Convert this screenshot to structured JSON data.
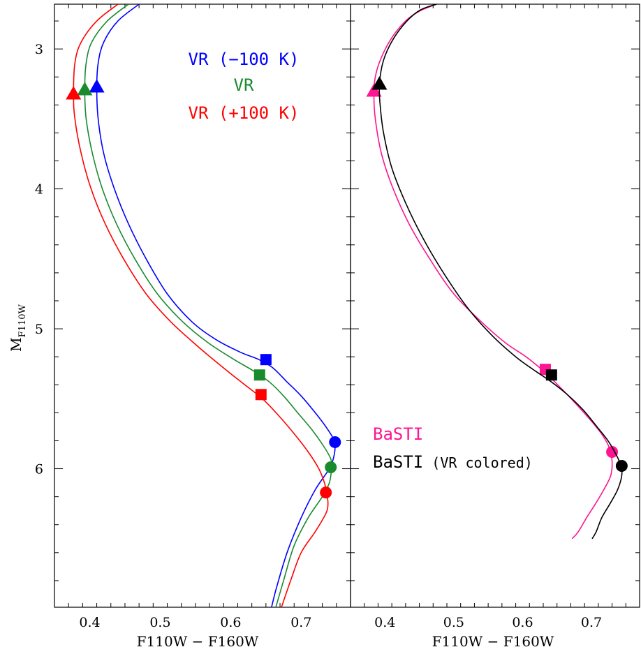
{
  "colors": {
    "blue": "#0000ff",
    "green": "#1a8a2e",
    "red": "#ff0000",
    "magenta": "#ff1493",
    "black": "#000000"
  },
  "chart_data": [
    {
      "type": "line",
      "panel": "left",
      "xlabel": "F110W − F160W",
      "ylabel": "M",
      "ylabel_sub": "F110W",
      "xlim": [
        0.35,
        0.77
      ],
      "ylim": [
        6.99,
        2.68
      ],
      "y_inverted": true,
      "xticks": [
        0.4,
        0.5,
        0.6,
        0.7
      ],
      "xtick_labels": [
        "0.4",
        "0.5",
        "0.6",
        "0.7"
      ],
      "yticks": [
        3,
        4,
        5,
        6
      ],
      "ytick_labels": [
        "3",
        "4",
        "5",
        "6"
      ],
      "legend": [
        {
          "text": "VR (−100 K)",
          "color": "#0000ff"
        },
        {
          "text": "VR",
          "color": "#1a8a2e"
        },
        {
          "text": "VR (+100 K)",
          "color": "#ff0000"
        }
      ],
      "legend_position": "top-right",
      "series": [
        {
          "color": "#0000ff",
          "x": [
            0.47,
            0.44,
            0.42,
            0.412,
            0.41,
            0.412,
            0.42,
            0.435,
            0.455,
            0.48,
            0.51,
            0.545,
            0.58,
            0.615,
            0.64,
            0.66,
            0.68,
            0.7,
            0.72,
            0.735,
            0.745,
            0.748,
            0.746,
            0.74,
            0.72,
            0.7,
            0.68,
            0.665,
            0.658
          ],
          "y": [
            2.68,
            2.8,
            2.95,
            3.1,
            3.28,
            3.5,
            3.75,
            4.0,
            4.25,
            4.5,
            4.75,
            4.95,
            5.08,
            5.17,
            5.22,
            5.28,
            5.38,
            5.48,
            5.6,
            5.7,
            5.78,
            5.84,
            5.92,
            6.0,
            6.15,
            6.35,
            6.6,
            6.85,
            6.99
          ],
          "markers": [
            {
              "shape": "triangle",
              "x": 0.41,
              "y": 3.27
            },
            {
              "shape": "square",
              "x": 0.65,
              "y": 5.22
            },
            {
              "shape": "circle",
              "x": 0.748,
              "y": 5.81
            }
          ]
        },
        {
          "color": "#1a8a2e",
          "x": [
            0.455,
            0.425,
            0.403,
            0.395,
            0.393,
            0.395,
            0.404,
            0.418,
            0.438,
            0.464,
            0.496,
            0.532,
            0.568,
            0.605,
            0.632,
            0.655,
            0.675,
            0.695,
            0.715,
            0.732,
            0.742,
            0.743,
            0.74,
            0.73,
            0.71,
            0.69,
            0.675,
            0.664
          ],
          "y": [
            2.68,
            2.8,
            2.95,
            3.1,
            3.29,
            3.5,
            3.75,
            4.0,
            4.25,
            4.5,
            4.75,
            4.95,
            5.1,
            5.22,
            5.3,
            5.38,
            5.48,
            5.6,
            5.72,
            5.84,
            5.93,
            6.0,
            6.1,
            6.2,
            6.35,
            6.55,
            6.8,
            6.99
          ],
          "markers": [
            {
              "shape": "triangle",
              "x": 0.393,
              "y": 3.29
            },
            {
              "shape": "square",
              "x": 0.641,
              "y": 5.33
            },
            {
              "shape": "circle",
              "x": 0.742,
              "y": 5.99
            }
          ]
        },
        {
          "color": "#ff0000",
          "x": [
            0.44,
            0.41,
            0.388,
            0.379,
            0.377,
            0.379,
            0.388,
            0.402,
            0.422,
            0.448,
            0.48,
            0.515,
            0.552,
            0.59,
            0.62,
            0.645,
            0.668,
            0.69,
            0.71,
            0.725,
            0.733,
            0.736,
            0.738,
            0.735,
            0.72,
            0.7,
            0.685,
            0.672
          ],
          "y": [
            2.68,
            2.8,
            2.95,
            3.1,
            3.32,
            3.5,
            3.75,
            4.0,
            4.25,
            4.5,
            4.75,
            4.95,
            5.12,
            5.28,
            5.4,
            5.5,
            5.62,
            5.75,
            5.88,
            6.0,
            6.1,
            6.17,
            6.25,
            6.32,
            6.45,
            6.6,
            6.8,
            6.99
          ],
          "markers": [
            {
              "shape": "triangle",
              "x": 0.377,
              "y": 3.32
            },
            {
              "shape": "square",
              "x": 0.643,
              "y": 5.47
            },
            {
              "shape": "circle",
              "x": 0.735,
              "y": 6.17
            }
          ]
        }
      ]
    },
    {
      "type": "line",
      "panel": "right",
      "xlabel": "F110W − F160W",
      "xlim": [
        0.35,
        0.77
      ],
      "ylim": [
        6.99,
        2.68
      ],
      "y_inverted": true,
      "xticks": [
        0.4,
        0.5,
        0.6,
        0.7
      ],
      "xtick_labels": [
        "0.4",
        "0.5",
        "0.6",
        "0.7"
      ],
      "legend": [
        {
          "text": "BaSTI",
          "color": "#ff1493"
        },
        {
          "text": "BaSTI",
          "suffix": " (VR colored)",
          "color": "#000000"
        }
      ],
      "legend_position": "bottom-right",
      "series": [
        {
          "color": "#ff1493",
          "x": [
            0.475,
            0.45,
            0.43,
            0.41,
            0.394,
            0.386,
            0.384,
            0.386,
            0.395,
            0.412,
            0.435,
            0.465,
            0.5,
            0.54,
            0.575,
            0.605,
            0.63,
            0.655,
            0.68,
            0.7,
            0.716,
            0.726,
            0.73,
            0.728,
            0.718,
            0.706,
            0.693,
            0.681,
            0.672
          ],
          "y": [
            2.68,
            2.73,
            2.8,
            2.92,
            3.07,
            3.2,
            3.33,
            3.5,
            3.75,
            4.0,
            4.25,
            4.5,
            4.75,
            4.95,
            5.1,
            5.2,
            5.3,
            5.42,
            5.55,
            5.66,
            5.76,
            5.85,
            5.95,
            6.05,
            6.15,
            6.25,
            6.35,
            6.45,
            6.5
          ],
          "markers": [
            {
              "shape": "triangle",
              "x": 0.384,
              "y": 3.3
            },
            {
              "shape": "square",
              "x": 0.633,
              "y": 5.29
            },
            {
              "shape": "circle",
              "x": 0.73,
              "y": 5.88
            }
          ]
        },
        {
          "color": "#000000",
          "x": [
            0.475,
            0.452,
            0.432,
            0.412,
            0.398,
            0.392,
            0.393,
            0.398,
            0.41,
            0.43,
            0.455,
            0.485,
            0.52,
            0.556,
            0.59,
            0.618,
            0.642,
            0.665,
            0.688,
            0.708,
            0.724,
            0.736,
            0.743,
            0.744,
            0.738,
            0.727,
            0.715,
            0.707,
            0.701
          ],
          "y": [
            2.68,
            2.72,
            2.8,
            2.93,
            3.08,
            3.25,
            3.4,
            3.6,
            3.85,
            4.1,
            4.35,
            4.6,
            4.85,
            5.05,
            5.2,
            5.3,
            5.38,
            5.47,
            5.58,
            5.7,
            5.8,
            5.9,
            5.98,
            6.05,
            6.15,
            6.25,
            6.35,
            6.45,
            6.5
          ],
          "markers": [
            {
              "shape": "triangle",
              "x": 0.392,
              "y": 3.25
            },
            {
              "shape": "square",
              "x": 0.642,
              "y": 5.33
            },
            {
              "shape": "circle",
              "x": 0.744,
              "y": 5.98
            }
          ]
        }
      ]
    }
  ]
}
